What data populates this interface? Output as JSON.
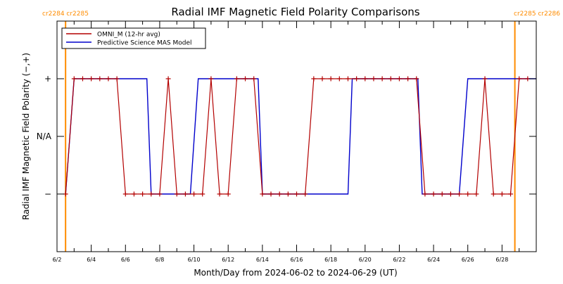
{
  "chart_data": {
    "type": "line",
    "title": "Radial IMF Magnetic Field Polarity Comparisons",
    "xlabel": "Month/Day from 2024-06-02 to 2024-06-29 (UT)",
    "ylabel": "Radial IMF Magnetic Field Polarity (−,+)",
    "xlim": [
      "2024-06-02",
      "2024-06-29"
    ],
    "x_tick_labels": [
      "6/2",
      "6/4",
      "6/6",
      "6/8",
      "6/10",
      "6/12",
      "6/14",
      "6/16",
      "6/18",
      "6/20",
      "6/22",
      "6/24",
      "6/26",
      "6/28"
    ],
    "y_categories": [
      "−",
      "N/A",
      "+"
    ],
    "ylim": [
      -2,
      2
    ],
    "grid": false,
    "legend_position": "top-left",
    "carrington_labels": {
      "left": "cr2284 cr2285",
      "right": "cr2285 cr2286"
    },
    "carrington_boundaries": [
      "2024-06-02T12:00",
      "2024-06-28T18:00"
    ],
    "series": [
      {
        "name": "OMNI_M (12-hr avg)",
        "color": "#b30000",
        "marker": "+",
        "points": [
          [
            "2024-06-02T12:00",
            -1
          ],
          [
            "2024-06-03T00:00",
            1
          ],
          [
            "2024-06-03T12:00",
            1
          ],
          [
            "2024-06-04T00:00",
            1
          ],
          [
            "2024-06-04T12:00",
            1
          ],
          [
            "2024-06-05T00:00",
            1
          ],
          [
            "2024-06-05T12:00",
            1
          ],
          [
            "2024-06-06T00:00",
            -1
          ],
          [
            "2024-06-06T12:00",
            -1
          ],
          [
            "2024-06-07T00:00",
            -1
          ],
          [
            "2024-06-07T12:00",
            -1
          ],
          [
            "2024-06-08T00:00",
            -1
          ],
          [
            "2024-06-08T12:00",
            1
          ],
          [
            "2024-06-09T00:00",
            -1
          ],
          [
            "2024-06-09T12:00",
            -1
          ],
          [
            "2024-06-10T00:00",
            -1
          ],
          [
            "2024-06-10T12:00",
            -1
          ],
          [
            "2024-06-11T00:00",
            1
          ],
          [
            "2024-06-11T12:00",
            -1
          ],
          [
            "2024-06-12T00:00",
            -1
          ],
          [
            "2024-06-12T12:00",
            1
          ],
          [
            "2024-06-13T00:00",
            1
          ],
          [
            "2024-06-13T12:00",
            1
          ],
          [
            "2024-06-14T00:00",
            -1
          ],
          [
            "2024-06-14T12:00",
            -1
          ],
          [
            "2024-06-15T00:00",
            -1
          ],
          [
            "2024-06-15T12:00",
            -1
          ],
          [
            "2024-06-16T00:00",
            -1
          ],
          [
            "2024-06-16T12:00",
            -1
          ],
          [
            "2024-06-17T00:00",
            1
          ],
          [
            "2024-06-17T12:00",
            1
          ],
          [
            "2024-06-18T00:00",
            1
          ],
          [
            "2024-06-18T12:00",
            1
          ],
          [
            "2024-06-19T00:00",
            1
          ],
          [
            "2024-06-19T12:00",
            1
          ],
          [
            "2024-06-20T00:00",
            1
          ],
          [
            "2024-06-20T12:00",
            1
          ],
          [
            "2024-06-21T00:00",
            1
          ],
          [
            "2024-06-21T12:00",
            1
          ],
          [
            "2024-06-22T00:00",
            1
          ],
          [
            "2024-06-22T12:00",
            1
          ],
          [
            "2024-06-23T00:00",
            1
          ],
          [
            "2024-06-23T12:00",
            -1
          ],
          [
            "2024-06-24T00:00",
            -1
          ],
          [
            "2024-06-24T12:00",
            -1
          ],
          [
            "2024-06-25T00:00",
            -1
          ],
          [
            "2024-06-25T12:00",
            -1
          ],
          [
            "2024-06-26T00:00",
            -1
          ],
          [
            "2024-06-26T12:00",
            -1
          ],
          [
            "2024-06-27T00:00",
            1
          ],
          [
            "2024-06-27T12:00",
            -1
          ],
          [
            "2024-06-28T00:00",
            -1
          ],
          [
            "2024-06-28T12:00",
            -1
          ],
          [
            "2024-06-29T00:00",
            1
          ],
          [
            "2024-06-29T12:00",
            1
          ]
        ]
      },
      {
        "name": "Predictive Science MAS Model",
        "color": "#0000cc",
        "steps": [
          [
            "2024-06-02T12:00",
            -1
          ],
          [
            "2024-06-03T00:00",
            1
          ],
          [
            "2024-06-07T06:00",
            1
          ],
          [
            "2024-06-07T12:00",
            -1
          ],
          [
            "2024-06-09T19:00",
            -1
          ],
          [
            "2024-06-10T06:00",
            1
          ],
          [
            "2024-06-13T18:00",
            1
          ],
          [
            "2024-06-14T00:00",
            -1
          ],
          [
            "2024-06-19T00:00",
            -1
          ],
          [
            "2024-06-19T06:00",
            1
          ],
          [
            "2024-06-23T02:00",
            1
          ],
          [
            "2024-06-23T08:00",
            -1
          ],
          [
            "2024-06-25T12:00",
            -1
          ],
          [
            "2024-06-26T00:00",
            1
          ],
          [
            "2024-06-30T00:00",
            1
          ]
        ]
      }
    ]
  }
}
